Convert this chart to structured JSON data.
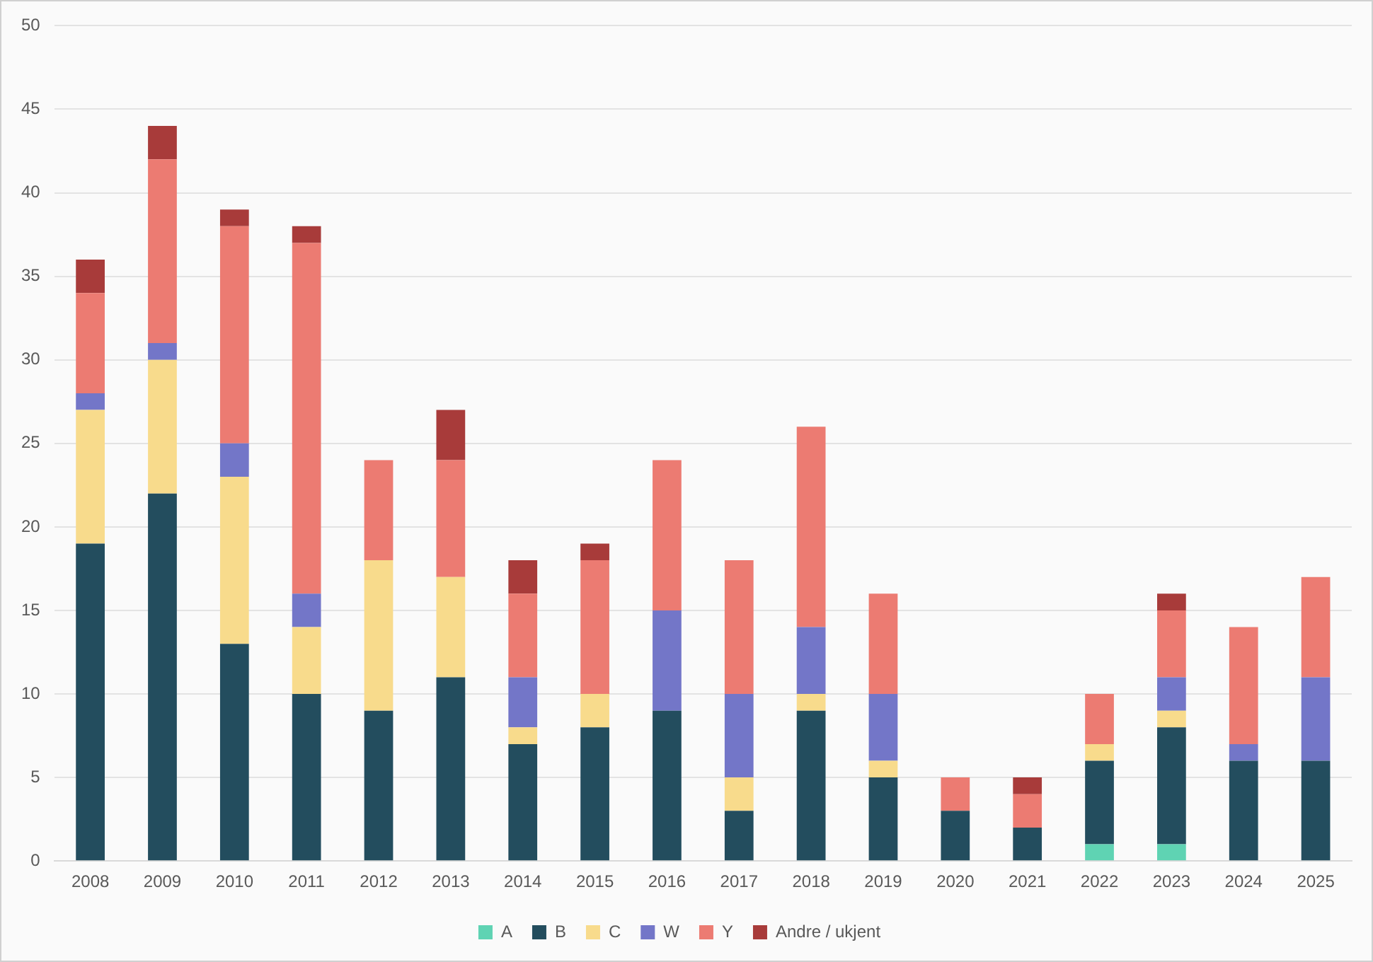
{
  "chart_data": {
    "type": "bar",
    "stacked": true,
    "categories": [
      "2008",
      "2009",
      "2010",
      "2011",
      "2012",
      "2013",
      "2014",
      "2015",
      "2016",
      "2017",
      "2018",
      "2019",
      "2020",
      "2021",
      "2022",
      "2023",
      "2024",
      "2025"
    ],
    "series": [
      {
        "name": "A",
        "color": "#5fd3b3",
        "values": [
          null,
          null,
          null,
          null,
          null,
          null,
          null,
          null,
          null,
          null,
          null,
          null,
          null,
          null,
          1,
          1,
          null,
          null
        ]
      },
      {
        "name": "B",
        "color": "#234d5e",
        "values": [
          19,
          22,
          13,
          10,
          9,
          11,
          7,
          8,
          9,
          3,
          9,
          5,
          3,
          2,
          5,
          7,
          6,
          6
        ]
      },
      {
        "name": "C",
        "color": "#f8db8c",
        "values": [
          8,
          8,
          10,
          4,
          9,
          6,
          1,
          2,
          null,
          2,
          1,
          1,
          null,
          null,
          1,
          1,
          null,
          null
        ]
      },
      {
        "name": "W",
        "color": "#7376c8",
        "values": [
          1,
          1,
          2,
          2,
          null,
          null,
          3,
          null,
          6,
          5,
          4,
          4,
          null,
          null,
          null,
          2,
          1,
          5
        ]
      },
      {
        "name": "Y",
        "color": "#ec7b72",
        "values": [
          6,
          11,
          13,
          21,
          6,
          7,
          5,
          8,
          9,
          8,
          12,
          6,
          2,
          2,
          3,
          4,
          7,
          6
        ]
      },
      {
        "name": "Andre / ukjent",
        "color": "#a83b3a",
        "values": [
          2,
          2,
          1,
          1,
          null,
          3,
          2,
          1,
          null,
          null,
          null,
          null,
          null,
          1,
          null,
          1,
          null,
          null
        ]
      }
    ],
    "ylim": [
      0,
      50
    ],
    "yticks": [
      0,
      5,
      10,
      15,
      20,
      25,
      30,
      35,
      40,
      45,
      50
    ],
    "grid": "y",
    "legend": "bottom"
  }
}
